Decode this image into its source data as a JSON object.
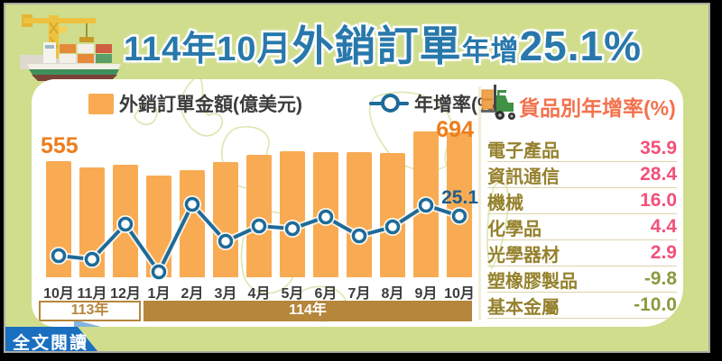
{
  "title": {
    "full": "114年10月外銷訂單年增25.1%",
    "parts": {
      "period": "114年10月",
      "subject": "外銷訂單",
      "label": "年增",
      "value": "25.1%"
    }
  },
  "legend": {
    "bar_label": "外銷訂單金額(億美元)",
    "line_label": "年增率(%)"
  },
  "chart_data": {
    "type": "bar",
    "categories": [
      "10月",
      "11月",
      "12月",
      "1月",
      "2月",
      "3月",
      "4月",
      "5月",
      "6月",
      "7月",
      "8月",
      "9月",
      "10月"
    ],
    "series": [
      {
        "name": "外銷訂單金額(億美元)",
        "type": "bar",
        "unit": "億美元",
        "values": [
          555,
          528,
          537,
          488,
          513,
          550,
          586,
          602,
          597,
          599,
          596,
          700,
          694
        ]
      },
      {
        "name": "年增率(%)",
        "type": "line",
        "unit": "%",
        "values": [
          4.9,
          3.3,
          20.8,
          -3.0,
          31.1,
          12.5,
          19.8,
          18.5,
          24.6,
          15.2,
          19.5,
          30.5,
          25.1
        ]
      }
    ],
    "annotations": {
      "first_bar_label": "555",
      "last_bar_label": "694",
      "last_point_label": "25.1"
    },
    "x_axis_groups": [
      {
        "label": "113年",
        "span": [
          0,
          2
        ]
      },
      {
        "label": "114年",
        "span": [
          3,
          12
        ]
      }
    ],
    "ylim_bar": [
      0,
      750
    ],
    "ylim_line": [
      -10,
      40
    ],
    "grid": false,
    "legend_position": "top"
  },
  "panel": {
    "title": "貨品別年增率(%)",
    "items": [
      {
        "name": "電子產品",
        "value": "35.9"
      },
      {
        "name": "資訊通信",
        "value": "28.4"
      },
      {
        "name": "機械",
        "value": "16.0"
      },
      {
        "name": "化學品",
        "value": "4.4"
      },
      {
        "name": "光學器材",
        "value": "2.9"
      },
      {
        "name": "塑橡膠製品",
        "value": "-9.8"
      },
      {
        "name": "基本金屬",
        "value": "-10.0"
      }
    ]
  },
  "footer": {
    "read_more": "全文閱讀"
  },
  "colors": {
    "background": "#cfdd8c",
    "card": "#ffffff",
    "bar": "#f8ab53",
    "line": "#1d6b99",
    "title": "#2878ab",
    "accent_orange": "#ee7d1c",
    "growth_blue": "#1d5f8e",
    "band_brown": "#b5863c",
    "text_dark": "#3c3c3c",
    "panel_header": "#f3724e",
    "panel_label": "#95812c",
    "panel_value": "#f2517a",
    "panel_negative": "#8c9a40",
    "button_blue": "#1b6fc0",
    "map_line": "#d6e5a8",
    "divider": "#f3ecd6"
  }
}
